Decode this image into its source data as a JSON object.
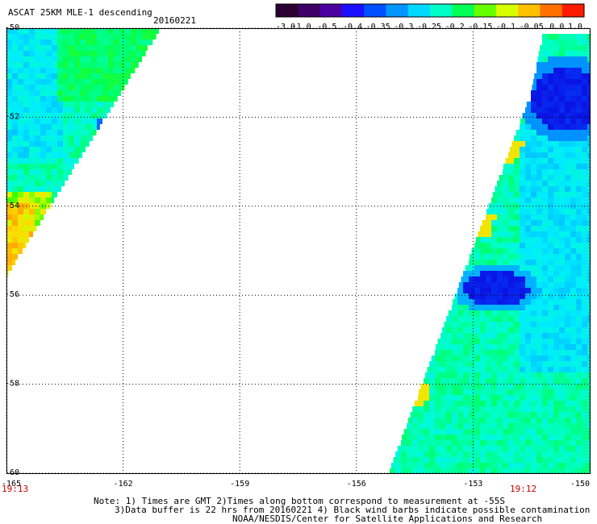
{
  "header": {
    "title": "ASCAT 25KM MLE-1 descending",
    "date": "20160221"
  },
  "colorbar": {
    "tick_labels": [
      "-3.0",
      "-1.0",
      "-0.5",
      "-0.4",
      "-0.35",
      "-0.3",
      "-0.25",
      "-0.2",
      "-0.15",
      "-0.1",
      "-0.05",
      "0.0",
      "1.0"
    ],
    "colors": [
      "#2a0033",
      "#3c0066",
      "#4b00a0",
      "#1a10ff",
      "#0050ff",
      "#0095ff",
      "#00d8ff",
      "#00ffc8",
      "#00ff55",
      "#66ff00",
      "#d8ff00",
      "#ffc000",
      "#ff7000",
      "#ff1a00"
    ]
  },
  "map": {
    "lat_labels": [
      "-50",
      "-52",
      "-54",
      "-56",
      "-58",
      "-60"
    ],
    "lat_values": [
      -50,
      -52,
      -54,
      -56,
      -58,
      -60
    ],
    "lon_labels": [
      "-165",
      "-162",
      "-159",
      "-156",
      "-153",
      "-150"
    ],
    "lon_values": [
      -165,
      -162,
      -159,
      -156,
      -153,
      -150
    ],
    "time_left": "19:13",
    "time_right": "19:12"
  },
  "notes": {
    "line1": "Note: 1) Times are GMT 2)Times along bottom correspond to measurement at -55S",
    "line2": "3)Data buffer is 22 hrs from 20160221 4) Black wind barbs indicate possible contamination",
    "line3": "NOAA/NESDIS/Center for Satellite Applications and Research"
  }
}
